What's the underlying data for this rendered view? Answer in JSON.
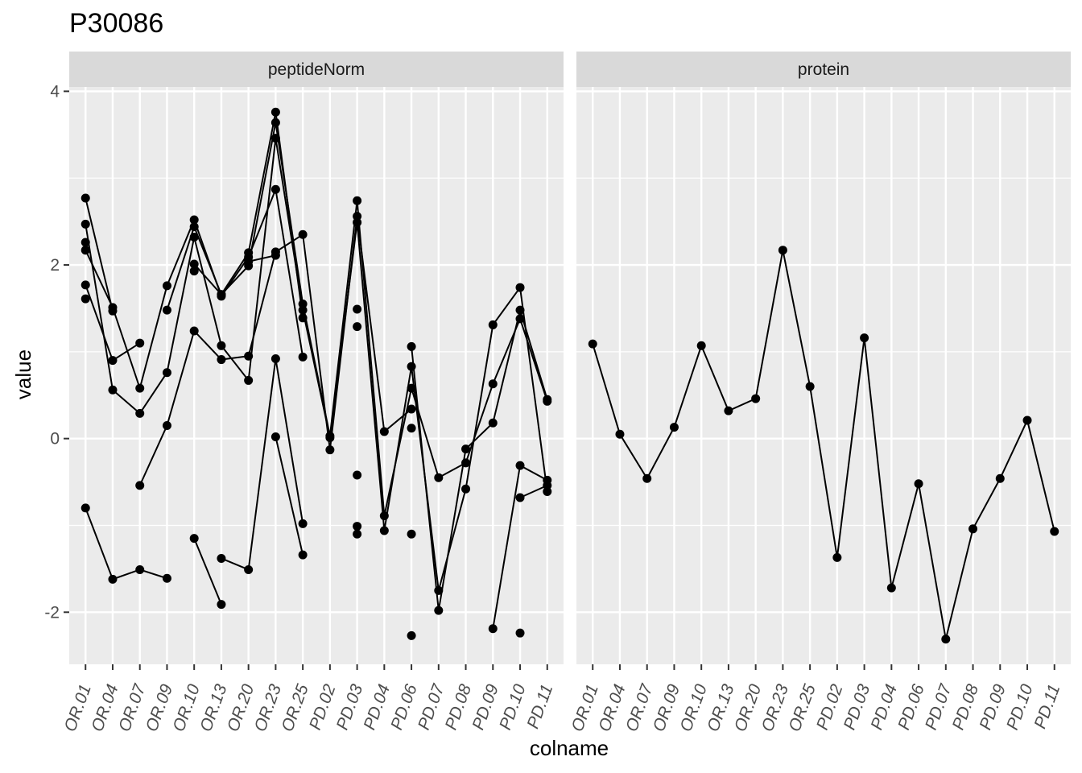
{
  "chart_data": {
    "type": "line",
    "title": "P30086",
    "xlabel": "colname",
    "ylabel": "value",
    "ylim": [
      -2.6,
      4.05
    ],
    "yticks": [
      -2,
      0,
      2,
      4
    ],
    "ytick_labels": [
      "-2",
      "0",
      "2",
      "4"
    ],
    "categories": [
      "OR.01",
      "OR.04",
      "OR.07",
      "OR.09",
      "OR.10",
      "OR.13",
      "OR.20",
      "OR.23",
      "OR.25",
      "PD.02",
      "PD.03",
      "PD.04",
      "PD.06",
      "PD.07",
      "PD.08",
      "PD.09",
      "PD.10",
      "PD.11"
    ],
    "grid": true,
    "legend": "none",
    "colors": {
      "panel_bg": "#ebebeb",
      "grid_major": "#ffffff",
      "strip_bg": "#d9d9d9",
      "line": "#000000",
      "point": "#000000",
      "axis_text": "#4d4d4d"
    },
    "facets": [
      {
        "label": "peptideNorm",
        "series": [
          {
            "values": [
              2.77,
              1.47,
              null,
              1.48,
              2.44,
              1.66,
              1.99,
              3.64,
              1.55,
              0.03,
              2.74,
              -0.89,
              0.58,
              -0.45,
              -0.28,
              0.63,
              1.38,
              0.43
            ]
          },
          {
            "values": [
              2.47,
              0.56,
              0.29,
              0.76,
              2.32,
              1.07,
              0.67,
              3.46,
              1.48,
              0.01,
              2.49,
              -1.06,
              0.83,
              -1.75,
              -0.58,
              1.31,
              1.74,
              -0.61
            ]
          },
          {
            "values": [
              2.17,
              1.51,
              0.58,
              1.76,
              2.52,
              1.64,
              2.09,
              2.87,
              0.94,
              null,
              1.29,
              null,
              1.06,
              -1.98,
              -0.12,
              0.18,
              1.48,
              0.45
            ]
          },
          {
            "values": [
              2.26,
              null,
              -0.54,
              0.15,
              1.24,
              0.91,
              0.95,
              2.15,
              2.35,
              -0.13,
              2.56,
              0.08,
              0.34,
              null,
              null,
              -2.19,
              -0.31,
              -0.48
            ]
          },
          {
            "values": [
              1.77,
              0.9,
              1.1,
              null,
              2.01,
              1.66,
              2.14,
              3.76,
              1.39,
              null,
              null,
              null,
              0.12,
              null,
              null,
              null,
              -0.68,
              -0.54
            ]
          },
          {
            "values": [
              1.61,
              null,
              null,
              null,
              1.93,
              null,
              2.04,
              2.11,
              null,
              null,
              null,
              null,
              null,
              null,
              null,
              null,
              null,
              null
            ]
          },
          {
            "values": [
              -0.8,
              -1.62,
              -1.51,
              -1.61,
              null,
              -1.38,
              -1.51,
              0.92,
              -0.98,
              null,
              1.49,
              null,
              -1.1,
              null,
              null,
              null,
              null,
              null
            ]
          },
          {
            "values": [
              null,
              null,
              null,
              null,
              -1.15,
              -1.91,
              null,
              0.02,
              -1.34,
              null,
              -1.01,
              null,
              -2.27,
              null,
              null,
              null,
              -2.24,
              null
            ]
          },
          {
            "values": [
              null,
              null,
              null,
              null,
              null,
              null,
              null,
              null,
              null,
              null,
              -0.42,
              null,
              null,
              null,
              null,
              null,
              null,
              null
            ]
          },
          {
            "values": [
              null,
              null,
              null,
              null,
              null,
              null,
              null,
              null,
              null,
              null,
              -1.1,
              null,
              null,
              null,
              null,
              null,
              null,
              null
            ]
          }
        ]
      },
      {
        "label": "protein",
        "series": [
          {
            "values": [
              1.09,
              0.05,
              -0.46,
              0.13,
              1.07,
              0.32,
              0.46,
              2.17,
              0.6,
              -1.37,
              1.16,
              -1.72,
              -0.52,
              -2.31,
              -1.04,
              -0.46,
              0.21,
              -1.07
            ]
          }
        ]
      }
    ]
  }
}
